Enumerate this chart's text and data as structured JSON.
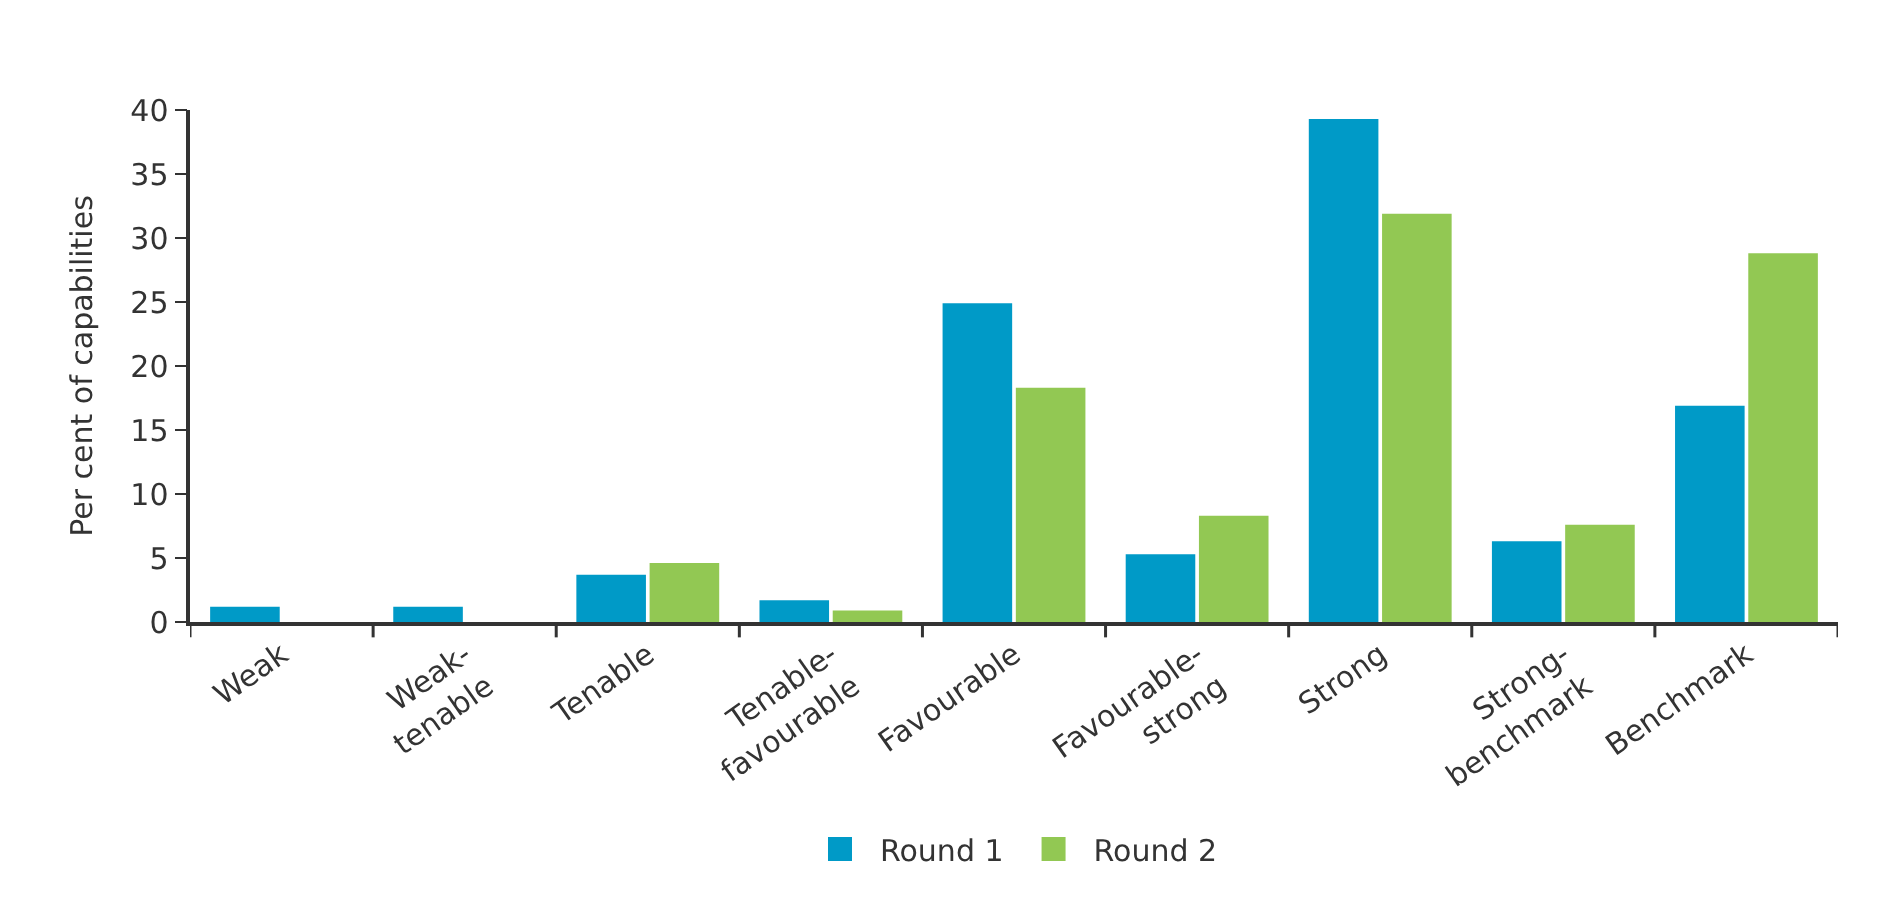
{
  "chart_data": {
    "type": "bar",
    "ylabel": "Per cent of capabilities",
    "categories": [
      "Weak",
      "Weak-tenable",
      "Tenable",
      "Tenable-favourable",
      "Favourable",
      "Favourable-strong",
      "Strong",
      "Strong-benchmark",
      "Benchmark"
    ],
    "series": [
      {
        "name": "Round 1",
        "color": "#009ac7",
        "values": [
          1.2,
          1.2,
          3.7,
          1.7,
          24.9,
          5.3,
          39.3,
          6.3,
          16.9
        ]
      },
      {
        "name": "Round 2",
        "color": "#92c853",
        "values": [
          0,
          0,
          4.6,
          0.9,
          18.3,
          8.3,
          31.9,
          7.6,
          28.8
        ]
      }
    ],
    "ylim": [
      0,
      40
    ],
    "yticks": [
      0,
      5,
      10,
      15,
      20,
      25,
      30,
      35,
      40
    ],
    "legend": "bottom"
  }
}
